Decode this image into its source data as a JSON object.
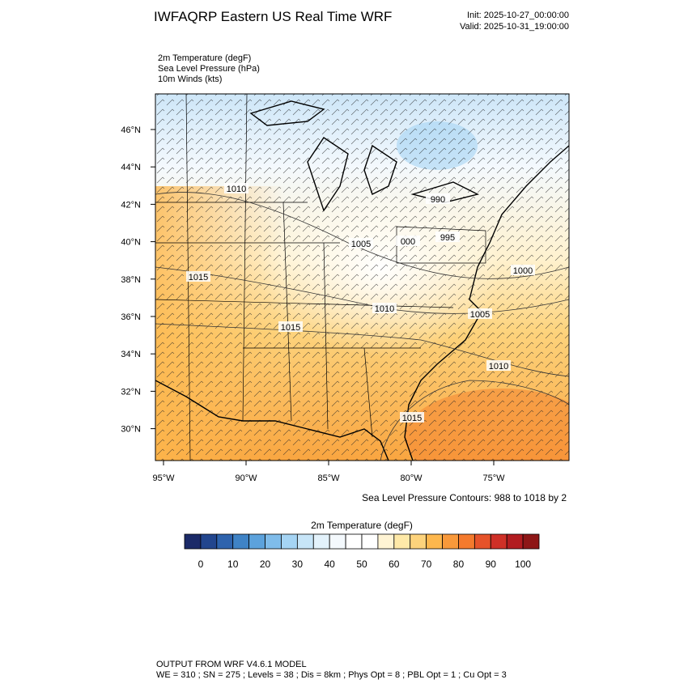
{
  "header": {
    "title": "IWFAQRP Eastern US Real Time WRF",
    "init": "Init: 2025-10-27_00:00:00",
    "valid": "Valid: 2025-10-31_19:00:00"
  },
  "fields": [
    "2m Temperature   (degF)",
    "Sea Level Pressure   (hPa)",
    "10m Winds   (kts)"
  ],
  "map": {
    "lat_labels": [
      "46°N",
      "44°N",
      "42°N",
      "40°N",
      "38°N",
      "36°N",
      "34°N",
      "32°N",
      "30°N"
    ],
    "lon_labels": [
      "95°W",
      "90°W",
      "85°W",
      "80°W",
      "75°W"
    ],
    "contour_labels": [
      "1010",
      "990",
      "1005",
      "000",
      "995",
      "1000",
      "1015",
      "1010",
      "1005",
      "1015",
      "1010",
      "1015"
    ],
    "contour_note": "Sea Level Pressure Contours: 988 to 1018 by 2"
  },
  "colorbar": {
    "title": "2m Temperature  (degF)",
    "ticks": [
      0,
      10,
      20,
      30,
      40,
      50,
      60,
      70,
      80,
      90,
      100
    ],
    "colors": [
      "#1b2a68",
      "#22468e",
      "#2e63ad",
      "#3f83c6",
      "#5ca2dc",
      "#7fbcea",
      "#a5d4f4",
      "#c7e5f8",
      "#e3f2fb",
      "#f4f9fd",
      "#ffffff",
      "#ffffff",
      "#fff4d4",
      "#fee9a8",
      "#fdd37c",
      "#fdb74d",
      "#f9993a",
      "#f47a2d",
      "#e6532a",
      "#cf3027",
      "#b21c20",
      "#8e1717"
    ]
  },
  "footer": {
    "line1": "OUTPUT FROM WRF V4.6.1 MODEL",
    "line2": "WE = 310 ; SN = 275 ; Levels = 38 ; Dis = 8km ; Phys Opt = 8 ; PBL Opt = 1 ; Cu Opt = 3"
  }
}
